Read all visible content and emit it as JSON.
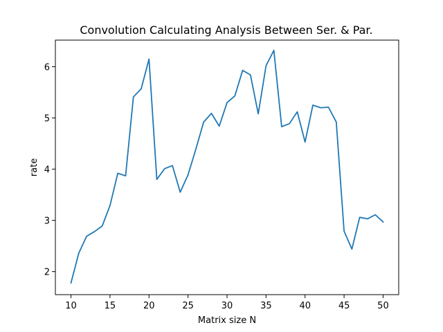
{
  "chart_data": {
    "type": "line",
    "title": "Convolution Calculating Analysis Between Ser. & Par.",
    "xlabel": "Matrix size N",
    "ylabel": "rate",
    "xlim": [
      8,
      52
    ],
    "ylim": [
      1.55,
      6.52
    ],
    "x_ticks": [
      10,
      15,
      20,
      25,
      30,
      35,
      40,
      45,
      50
    ],
    "y_ticks": [
      2,
      3,
      4,
      5,
      6
    ],
    "grid": false,
    "series": [
      {
        "color": "#1f77b4",
        "x": [
          10,
          11,
          12,
          13,
          14,
          15,
          16,
          17,
          18,
          19,
          20,
          21,
          22,
          23,
          24,
          25,
          26,
          27,
          28,
          29,
          30,
          31,
          32,
          33,
          34,
          35,
          36,
          37,
          38,
          39,
          40,
          41,
          42,
          43,
          44,
          45,
          46,
          47,
          48,
          49,
          50
        ],
        "y": [
          1.78,
          2.36,
          2.69,
          2.78,
          2.89,
          3.29,
          3.92,
          3.87,
          5.41,
          5.57,
          6.15,
          3.8,
          4.01,
          4.07,
          3.55,
          3.89,
          4.39,
          4.92,
          5.09,
          4.84,
          5.3,
          5.43,
          5.93,
          5.84,
          5.08,
          6.02,
          6.32,
          4.83,
          4.89,
          5.12,
          4.53,
          5.25,
          5.2,
          5.21,
          4.92,
          2.79,
          2.44,
          3.06,
          3.03,
          3.11,
          2.97
        ]
      }
    ]
  }
}
